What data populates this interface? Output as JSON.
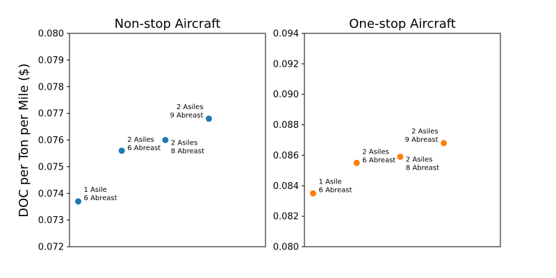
{
  "ylabel": "DOC per Ton per Mile ($)",
  "chart_data": [
    {
      "type": "scatter",
      "title": "Non-stop Aircraft",
      "ylabel": "DOC per Ton per Mile ($)",
      "ylim": [
        0.072,
        0.08
      ],
      "yticks": [
        "0.072",
        "0.073",
        "0.074",
        "0.075",
        "0.076",
        "0.077",
        "0.078",
        "0.079",
        "0.080"
      ],
      "color": "#1f77b4",
      "grid": false,
      "points": [
        {
          "y": 0.0737,
          "label": [
            "1 Asile",
            "6 Abreast"
          ]
        },
        {
          "y": 0.0756,
          "label": [
            "2 Asiles",
            "6 Abreast"
          ]
        },
        {
          "y": 0.076,
          "label": [
            "2 Asiles",
            "8 Abreast"
          ]
        },
        {
          "y": 0.0768,
          "label": [
            "2 Asiles",
            "9 Abreast"
          ]
        }
      ]
    },
    {
      "type": "scatter",
      "title": "One-stop Aircraft",
      "ylim": [
        0.08,
        0.094
      ],
      "yticks": [
        "0.080",
        "0.082",
        "0.084",
        "0.086",
        "0.088",
        "0.090",
        "0.092",
        "0.094"
      ],
      "color": "#ff7f0e",
      "grid": false,
      "points": [
        {
          "y": 0.0835,
          "label": [
            "1 Asile",
            "6 Abreast"
          ]
        },
        {
          "y": 0.0855,
          "label": [
            "2 Asiles",
            "6 Abreast"
          ]
        },
        {
          "y": 0.0859,
          "label": [
            "2 Asiles",
            "8 Abreast"
          ]
        },
        {
          "y": 0.0868,
          "label": [
            "2 Asiles",
            "9 Abreast"
          ]
        }
      ]
    }
  ]
}
